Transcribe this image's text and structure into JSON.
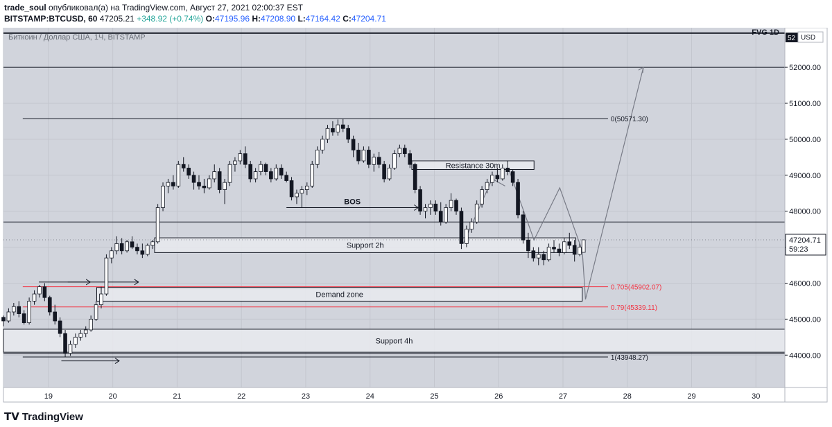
{
  "header": {
    "author": "trade_soul",
    "published_text": "опубликовал(а) на TradingView.com, Август 27, 2021 02:00:37 EST",
    "symbol": "BITSTAMP:BTCUSD, 60",
    "last": "47205.21",
    "change": "+348.92 (+0.74%)",
    "o_label": "O:",
    "o_value": "47195.96",
    "h_label": "H:",
    "h_value": "47208.90",
    "l_label": "L:",
    "l_value": "47164.42",
    "c_label": "C:",
    "c_value": "47204.71"
  },
  "chart_title": "Биткоин / Доллар США, 1Ч, BITSTAMP",
  "fvg_label": "FVG 1D",
  "currency": "USD",
  "footer": {
    "brand": "TradingView"
  },
  "chart_data": {
    "type": "candlestick",
    "x_ticks": [
      "19",
      "20",
      "21",
      "22",
      "23",
      "24",
      "25",
      "26",
      "27",
      "28",
      "29",
      "30"
    ],
    "x_domain": [
      18.3,
      30.45
    ],
    "y_ticks": [
      44000,
      45000,
      46000,
      47000,
      48000,
      49000,
      50000,
      51000,
      52000
    ],
    "ylim": [
      43100,
      53100
    ],
    "last_price": "47204.71",
    "countdown": "59:23",
    "top_axis_label": "52",
    "annotations": {
      "fib_levels": [
        {
          "label": "0(50571.30)",
          "value": 50571.3,
          "x_start": 18.6,
          "color": "#131722"
        },
        {
          "label": "0.705(45902.07)",
          "value": 45902.07,
          "x_start": 18.6,
          "color": "#f23645"
        },
        {
          "label": "0.79(45339.11)",
          "value": 45339.11,
          "x_start": 18.6,
          "color": "#f23645"
        },
        {
          "label": "1(43948.27)",
          "value": 43948.27,
          "x_start": 18.6,
          "color": "#131722"
        }
      ],
      "hlines": [
        {
          "value": 52950,
          "name": "fvg-1d-line"
        },
        {
          "value": 52000,
          "name": "level-52000"
        },
        {
          "value": 47700,
          "name": "level-47700"
        },
        {
          "value": 44050,
          "name": "level-44050"
        }
      ],
      "zones": [
        {
          "label": "Resistance 30m",
          "x1": 24.65,
          "x2": 26.55,
          "top": 49400,
          "bottom": 49160
        },
        {
          "label": "Support 2h",
          "x1": 20.65,
          "x2": 27.2,
          "top": 47260,
          "bottom": 46850
        },
        {
          "label": "Demand zone",
          "x1": 19.75,
          "x2": 27.3,
          "top": 45880,
          "bottom": 45500
        },
        {
          "label": "Support 4h",
          "x1": 18.3,
          "x2": 30.45,
          "top": 44720,
          "bottom": 44080
        }
      ],
      "bos_label": "BOS",
      "bos_value": 48100,
      "bos_x": [
        22.7,
        24.75
      ]
    },
    "candles": [
      [
        18.3,
        45050,
        45100,
        44800,
        44950
      ],
      [
        18.38,
        44950,
        45300,
        44900,
        45200
      ],
      [
        18.46,
        45200,
        45450,
        45100,
        45350
      ],
      [
        18.54,
        45350,
        45500,
        45050,
        45150
      ],
      [
        18.62,
        45150,
        45250,
        44850,
        44900
      ],
      [
        18.7,
        44900,
        45600,
        44850,
        45500
      ],
      [
        18.78,
        45500,
        45800,
        45400,
        45700
      ],
      [
        18.86,
        45700,
        45950,
        45600,
        45900
      ],
      [
        18.94,
        45900,
        46000,
        45500,
        45600
      ],
      [
        19.02,
        45600,
        45650,
        45100,
        45200
      ],
      [
        19.1,
        45200,
        45400,
        44850,
        44950
      ],
      [
        19.18,
        44950,
        45050,
        44500,
        44600
      ],
      [
        19.26,
        44600,
        44700,
        43950,
        44050
      ],
      [
        19.34,
        44050,
        44400,
        43980,
        44300
      ],
      [
        19.42,
        44300,
        44600,
        44200,
        44500
      ],
      [
        19.5,
        44500,
        44700,
        44400,
        44600
      ],
      [
        19.58,
        44600,
        44800,
        44500,
        44700
      ],
      [
        19.66,
        44700,
        45100,
        44650,
        45000
      ],
      [
        19.74,
        45000,
        45500,
        44950,
        45400
      ],
      [
        19.82,
        45400,
        45900,
        45300,
        45700
      ],
      [
        19.9,
        45700,
        46800,
        45650,
        46700
      ],
      [
        19.98,
        46700,
        47000,
        46550,
        46900
      ],
      [
        20.06,
        46900,
        47300,
        46800,
        47100
      ],
      [
        20.14,
        47100,
        47250,
        46800,
        46900
      ],
      [
        20.22,
        46900,
        47200,
        46850,
        47150
      ],
      [
        20.3,
        47150,
        47300,
        46950,
        47000
      ],
      [
        20.38,
        47000,
        47100,
        46800,
        46900
      ],
      [
        20.46,
        46900,
        47100,
        46700,
        46800
      ],
      [
        20.54,
        46800,
        47100,
        46750,
        47050
      ],
      [
        20.62,
        47050,
        47200,
        46950,
        47150
      ],
      [
        20.7,
        47150,
        48200,
        47100,
        48100
      ],
      [
        20.78,
        48100,
        48800,
        48000,
        48700
      ],
      [
        20.86,
        48700,
        48900,
        48500,
        48800
      ],
      [
        20.94,
        48800,
        49000,
        48600,
        48700
      ],
      [
        21.02,
        48700,
        49400,
        48650,
        49300
      ],
      [
        21.1,
        49300,
        49500,
        49100,
        49200
      ],
      [
        21.18,
        49200,
        49300,
        48900,
        49000
      ],
      [
        21.26,
        49000,
        49100,
        48600,
        48800
      ],
      [
        21.34,
        48800,
        49000,
        48600,
        48700
      ],
      [
        21.42,
        48700,
        48900,
        48500,
        48650
      ],
      [
        21.5,
        48650,
        49000,
        48600,
        48900
      ],
      [
        21.58,
        48900,
        49300,
        48800,
        49100
      ],
      [
        21.66,
        49100,
        49200,
        48500,
        48600
      ],
      [
        21.74,
        48600,
        48900,
        48200,
        48800
      ],
      [
        21.82,
        48800,
        49400,
        48700,
        49300
      ],
      [
        21.9,
        49300,
        49500,
        49100,
        49400
      ],
      [
        21.98,
        49400,
        49700,
        49300,
        49600
      ],
      [
        22.06,
        49600,
        49800,
        49200,
        49300
      ],
      [
        22.14,
        49300,
        49400,
        48800,
        48900
      ],
      [
        22.22,
        48900,
        49200,
        48800,
        49100
      ],
      [
        22.3,
        49100,
        49400,
        49000,
        49300
      ],
      [
        22.38,
        49300,
        49350,
        49000,
        49100
      ],
      [
        22.46,
        49100,
        49200,
        48800,
        48900
      ],
      [
        22.54,
        48900,
        49300,
        48850,
        49200
      ],
      [
        22.62,
        49200,
        49300,
        48900,
        49000
      ],
      [
        22.7,
        49000,
        49100,
        48800,
        48850
      ],
      [
        22.78,
        48850,
        48950,
        48300,
        48400
      ],
      [
        22.86,
        48400,
        48600,
        48200,
        48500
      ],
      [
        22.94,
        48500,
        48700,
        48100,
        48600
      ],
      [
        23.02,
        48600,
        48800,
        48450,
        48700
      ],
      [
        23.1,
        48700,
        49400,
        48650,
        49300
      ],
      [
        23.18,
        49300,
        49800,
        49200,
        49700
      ],
      [
        23.26,
        49700,
        50100,
        49600,
        50000
      ],
      [
        23.34,
        50000,
        50400,
        49900,
        50300
      ],
      [
        23.42,
        50300,
        50500,
        50100,
        50200
      ],
      [
        23.5,
        50200,
        50550,
        50100,
        50400
      ],
      [
        23.58,
        50400,
        50560,
        50200,
        50300
      ],
      [
        23.66,
        50300,
        50400,
        49900,
        50000
      ],
      [
        23.74,
        50000,
        50100,
        49500,
        49700
      ],
      [
        23.82,
        49700,
        49900,
        49300,
        49400
      ],
      [
        23.9,
        49400,
        49800,
        49350,
        49700
      ],
      [
        23.98,
        49700,
        49800,
        49200,
        49300
      ],
      [
        24.06,
        49300,
        49600,
        49100,
        49500
      ],
      [
        24.14,
        49500,
        49650,
        49200,
        49300
      ],
      [
        24.22,
        49300,
        49400,
        48800,
        48900
      ],
      [
        24.3,
        48900,
        49300,
        48850,
        49200
      ],
      [
        24.38,
        49200,
        49700,
        49150,
        49600
      ],
      [
        24.46,
        49600,
        49850,
        49500,
        49750
      ],
      [
        24.54,
        49750,
        49850,
        49500,
        49600
      ],
      [
        24.62,
        49600,
        49700,
        49200,
        49300
      ],
      [
        24.7,
        49300,
        49350,
        48500,
        48600
      ],
      [
        24.78,
        48600,
        48700,
        47900,
        48000
      ],
      [
        24.86,
        48000,
        48200,
        47800,
        48100
      ],
      [
        24.94,
        48100,
        48300,
        47900,
        48200
      ],
      [
        25.02,
        48200,
        48300,
        47900,
        48000
      ],
      [
        25.1,
        48000,
        48250,
        47600,
        47700
      ],
      [
        25.18,
        47700,
        48200,
        47650,
        48100
      ],
      [
        25.26,
        48100,
        48500,
        48000,
        48300
      ],
      [
        25.34,
        48300,
        48350,
        47900,
        48000
      ],
      [
        25.42,
        48000,
        48100,
        46950,
        47100
      ],
      [
        25.5,
        47100,
        47600,
        47000,
        47500
      ],
      [
        25.58,
        47500,
        47800,
        47400,
        47700
      ],
      [
        25.66,
        47700,
        48300,
        47650,
        48200
      ],
      [
        25.74,
        48200,
        48700,
        48100,
        48600
      ],
      [
        25.82,
        48600,
        48900,
        48500,
        48800
      ],
      [
        25.9,
        48800,
        49100,
        48700,
        49000
      ],
      [
        25.98,
        49000,
        49200,
        48800,
        48900
      ],
      [
        26.06,
        48900,
        49300,
        48850,
        49200
      ],
      [
        26.14,
        49200,
        49400,
        49000,
        49100
      ],
      [
        26.22,
        49100,
        49150,
        48700,
        48800
      ],
      [
        26.3,
        48800,
        48900,
        47800,
        47900
      ],
      [
        26.38,
        47900,
        48000,
        47100,
        47200
      ],
      [
        26.46,
        47200,
        47400,
        46700,
        46900
      ],
      [
        26.54,
        46900,
        47000,
        46600,
        46700
      ],
      [
        26.62,
        46700,
        47000,
        46500,
        46800
      ],
      [
        26.7,
        46800,
        46900,
        46500,
        46650
      ],
      [
        26.78,
        46650,
        47100,
        46600,
        47000
      ],
      [
        26.86,
        47000,
        47200,
        46850,
        46950
      ],
      [
        26.94,
        46950,
        47100,
        46750,
        46850
      ],
      [
        27.02,
        46850,
        47250,
        46800,
        47150
      ],
      [
        27.1,
        47150,
        47400,
        46950,
        47050
      ],
      [
        27.18,
        47050,
        47200,
        46600,
        46800
      ],
      [
        27.26,
        46800,
        47100,
        46750,
        47000
      ],
      [
        27.32,
        46857,
        47210,
        46850,
        47205
      ]
    ]
  }
}
